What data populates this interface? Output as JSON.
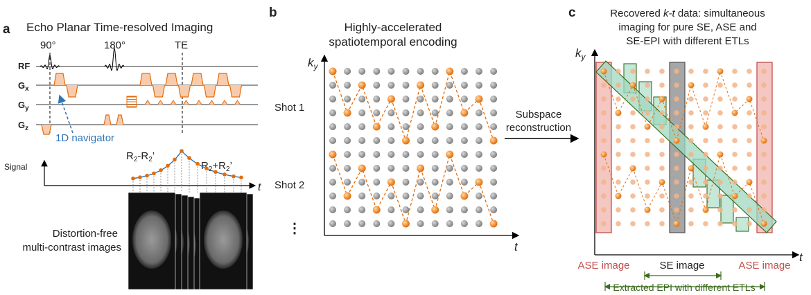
{
  "panel_a": {
    "letter": "a",
    "title": "Echo Planar Time-resolved Imaging",
    "pulse_labels": [
      "90°",
      "180°",
      "TE"
    ],
    "rf": "RF",
    "gradients": [
      [
        "G",
        "x"
      ],
      [
        "G",
        "y"
      ],
      [
        "G",
        "z"
      ]
    ],
    "navigator": "1D navigator",
    "signal": "Signal",
    "time_axis": "t",
    "decay_left": [
      "R",
      "2",
      "-R",
      "2",
      "’"
    ],
    "decay_right": [
      "R",
      "2",
      "+R",
      "2",
      "’"
    ],
    "caption": [
      "Distortion-free",
      "multi-contrast images"
    ]
  },
  "panel_b": {
    "letter": "b",
    "title": [
      "Highly-accelerated",
      "spatiotemporal encoding"
    ],
    "ky": [
      "k",
      "y"
    ],
    "time_axis": "t",
    "shots": [
      "Shot 1",
      "Shot 2",
      "⋮"
    ]
  },
  "arrow": [
    "Subspace",
    "reconstruction"
  ],
  "panel_c": {
    "letter": "c",
    "title": [
      [
        "Recovered ",
        "k-t",
        " data: simultaneous"
      ],
      [
        "imaging for pure SE, ASE and"
      ],
      [
        "SE-EPI with different ETLs"
      ]
    ],
    "ky": [
      "k",
      "y"
    ],
    "time_axis": "t",
    "images": [
      "ASE image",
      "SE image",
      "ASE image"
    ],
    "extracted": "Extracted EPI with different ETLs"
  }
}
